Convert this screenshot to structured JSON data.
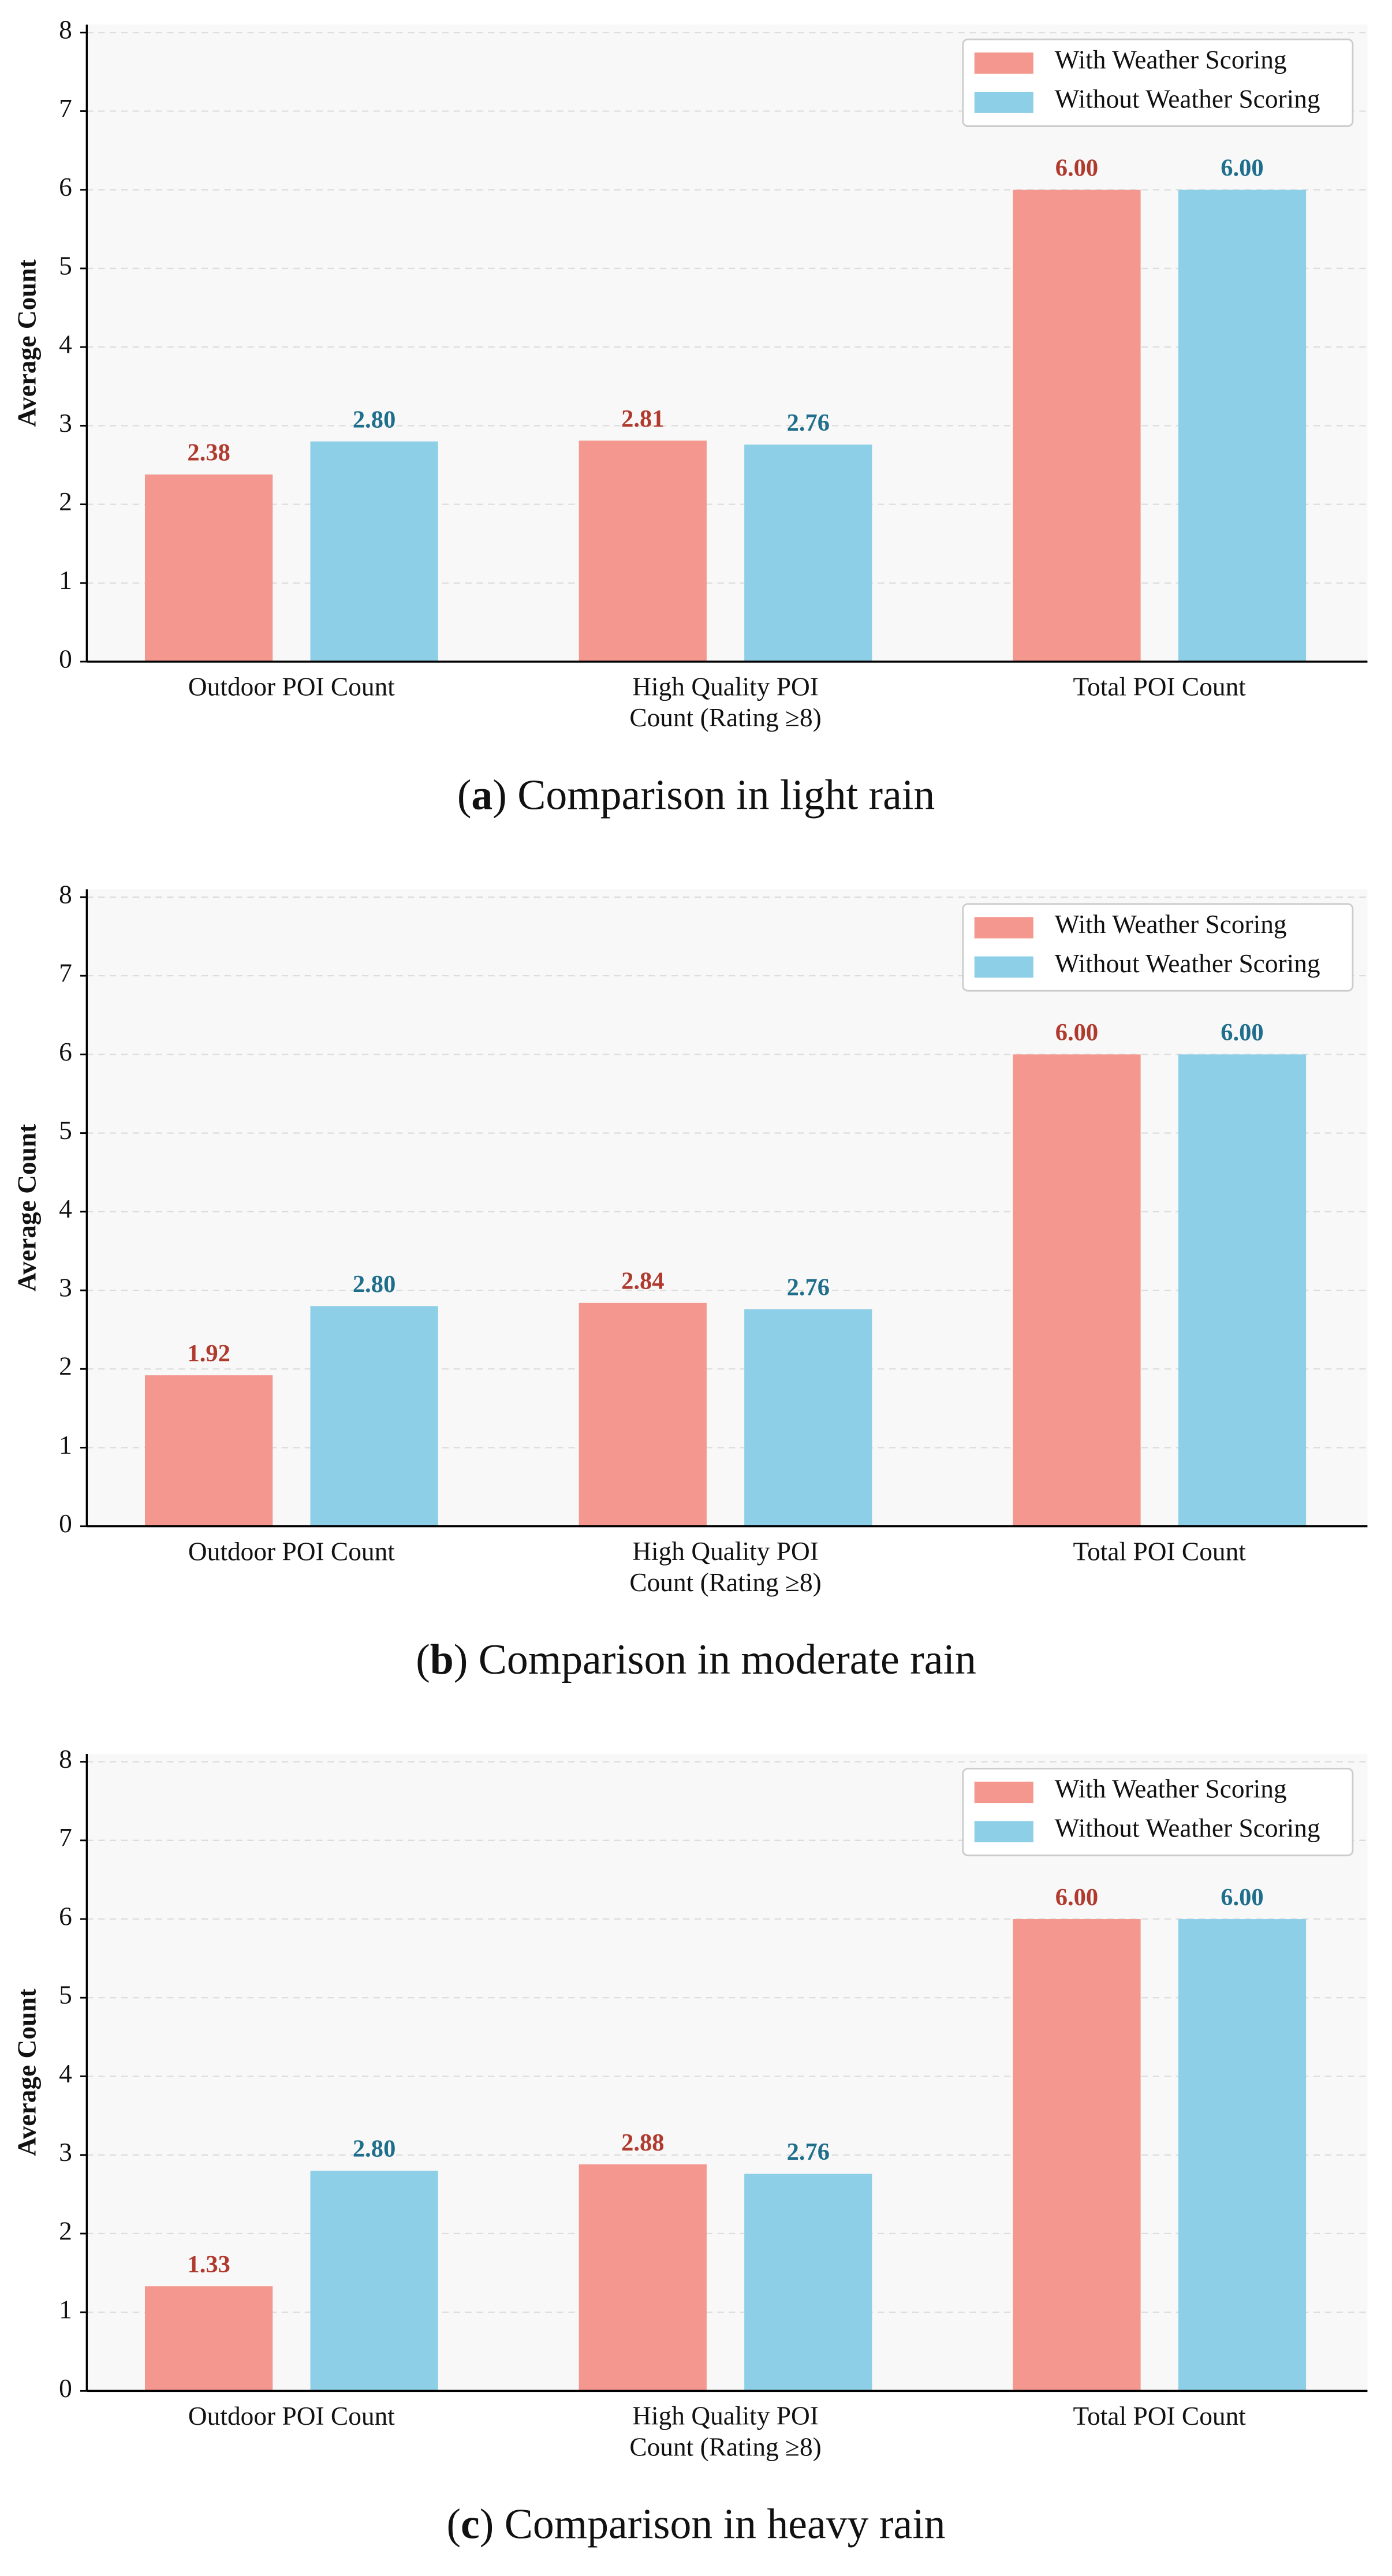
{
  "chart_data": [
    {
      "type": "bar",
      "caption": [
        "(",
        "a",
        ") Comparison in light rain"
      ],
      "ylabel": "Average Count",
      "categories": [
        "Outdoor POI Count",
        "High Quality POI\nCount (Rating ≥8)",
        "Total POI Count"
      ],
      "series": [
        {
          "name": "With Weather Scoring",
          "color": "#f4978e",
          "label_color": "#b03a2e",
          "values": [
            2.38,
            2.81,
            6.0
          ],
          "value_labels": [
            "2.38",
            "2.81",
            "6.00"
          ]
        },
        {
          "name": "Without Weather Scoring",
          "color": "#8ecfe8",
          "label_color": "#1f6e8c",
          "values": [
            2.8,
            2.76,
            6.0
          ],
          "value_labels": [
            "2.80",
            "2.76",
            "6.00"
          ]
        }
      ],
      "ylim": [
        0,
        8.1
      ],
      "yticks": [
        0,
        1,
        2,
        3,
        4,
        5,
        6,
        7,
        8
      ],
      "grid": true,
      "legend": "upper right"
    },
    {
      "type": "bar",
      "caption": [
        "(",
        "b",
        ") Comparison in moderate rain"
      ],
      "ylabel": "Average Count",
      "categories": [
        "Outdoor POI Count",
        "High Quality POI\nCount (Rating ≥8)",
        "Total POI Count"
      ],
      "series": [
        {
          "name": "With Weather Scoring",
          "color": "#f4978e",
          "label_color": "#b03a2e",
          "values": [
            1.92,
            2.84,
            6.0
          ],
          "value_labels": [
            "1.92",
            "2.84",
            "6.00"
          ]
        },
        {
          "name": "Without Weather Scoring",
          "color": "#8ecfe8",
          "label_color": "#1f6e8c",
          "values": [
            2.8,
            2.76,
            6.0
          ],
          "value_labels": [
            "2.80",
            "2.76",
            "6.00"
          ]
        }
      ],
      "ylim": [
        0,
        8.1
      ],
      "yticks": [
        0,
        1,
        2,
        3,
        4,
        5,
        6,
        7,
        8
      ],
      "grid": true,
      "legend": "upper right"
    },
    {
      "type": "bar",
      "caption": [
        "(",
        "c",
        ") Comparison in heavy rain"
      ],
      "ylabel": "Average Count",
      "categories": [
        "Outdoor POI Count",
        "High Quality POI\nCount (Rating ≥8)",
        "Total POI Count"
      ],
      "series": [
        {
          "name": "With Weather Scoring",
          "color": "#f4978e",
          "label_color": "#b03a2e",
          "values": [
            1.33,
            2.88,
            6.0
          ],
          "value_labels": [
            "1.33",
            "2.88",
            "6.00"
          ]
        },
        {
          "name": "Without Weather Scoring",
          "color": "#8ecfe8",
          "label_color": "#1f6e8c",
          "values": [
            2.8,
            2.76,
            6.0
          ],
          "value_labels": [
            "2.80",
            "2.76",
            "6.00"
          ]
        }
      ],
      "ylim": [
        0,
        8.1
      ],
      "yticks": [
        0,
        1,
        2,
        3,
        4,
        5,
        6,
        7,
        8
      ],
      "grid": true,
      "legend": "upper right"
    }
  ]
}
